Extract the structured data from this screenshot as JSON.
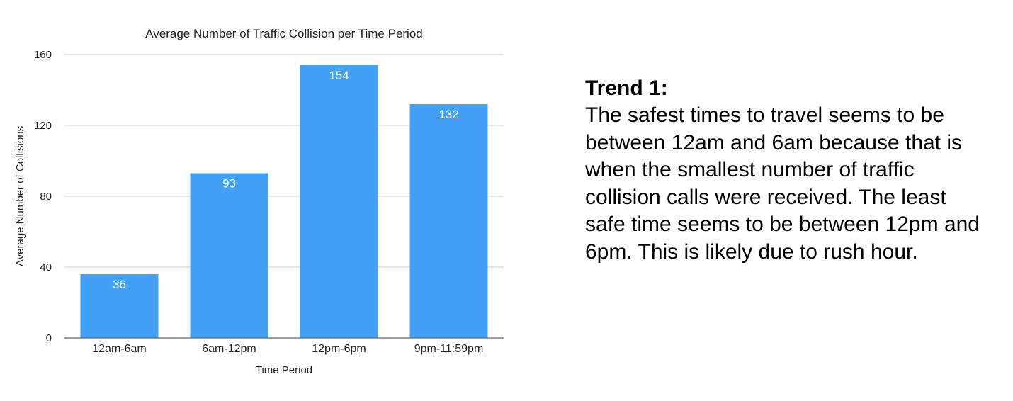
{
  "chart_data": {
    "type": "bar",
    "title": "Average Number of Traffic Collision per Time Period",
    "xlabel": "Time Period",
    "ylabel": "Average Number of Collisions",
    "categories": [
      "12am-6am",
      "6am-12pm",
      "12pm-6pm",
      "9pm-11:59pm"
    ],
    "values": [
      36,
      93,
      154,
      132
    ],
    "data_labels": [
      "36",
      "93",
      "154",
      "132"
    ],
    "ylim": [
      0,
      160
    ],
    "yticks": [
      0,
      40,
      80,
      120,
      160
    ],
    "ytick_labels": [
      "0",
      "40",
      "80",
      "120",
      "160"
    ],
    "grid": true,
    "legend": "none",
    "bar_color": "#42A0F5",
    "gridline_color": "#CFCFCF"
  },
  "trend": {
    "heading": "Trend 1:",
    "body": "The safest times to travel seems to be between 12am and 6am because that is when the smallest number of traffic collision calls were received. The least safe time seems to be between 12pm and 6pm. This is likely due to rush hour."
  }
}
